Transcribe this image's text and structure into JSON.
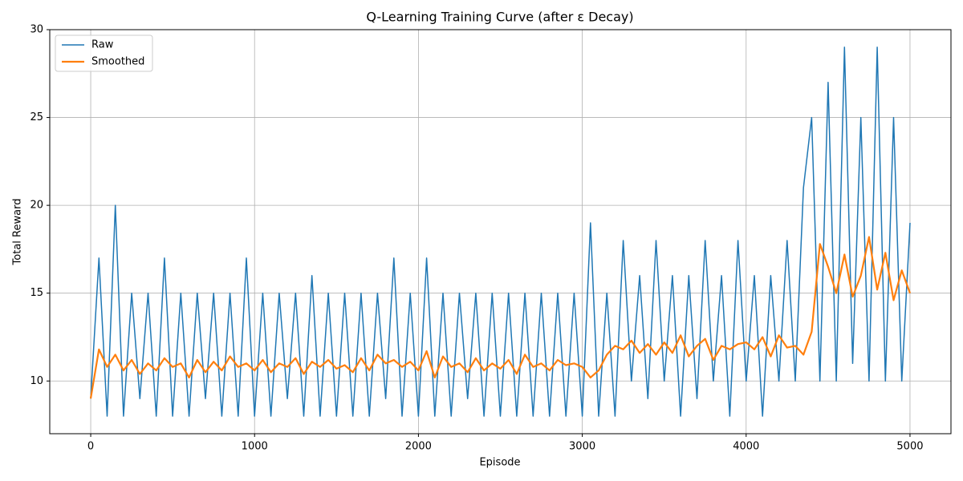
{
  "chart_data": {
    "type": "line",
    "title": "Q-Learning Training Curve (after ε Decay)",
    "x_label": "Episode",
    "y_label": "Total Reward",
    "x": [
      0,
      50,
      100,
      150,
      200,
      250,
      300,
      350,
      400,
      450,
      500,
      550,
      600,
      650,
      700,
      750,
      800,
      850,
      900,
      950,
      1000,
      1050,
      1100,
      1150,
      1200,
      1250,
      1300,
      1350,
      1400,
      1450,
      1500,
      1550,
      1600,
      1650,
      1700,
      1750,
      1800,
      1850,
      1900,
      1950,
      2000,
      2050,
      2100,
      2150,
      2200,
      2250,
      2300,
      2350,
      2400,
      2450,
      2500,
      2550,
      2600,
      2650,
      2700,
      2750,
      2800,
      2850,
      2900,
      2950,
      3000,
      3050,
      3100,
      3150,
      3200,
      3250,
      3300,
      3350,
      3400,
      3450,
      3500,
      3550,
      3600,
      3650,
      3700,
      3750,
      3800,
      3850,
      3900,
      3950,
      4000,
      4050,
      4100,
      4150,
      4200,
      4250,
      4300,
      4350,
      4400,
      4450,
      4500,
      4550,
      4600,
      4650,
      4700,
      4750,
      4800,
      4850,
      4900,
      4950,
      5000
    ],
    "series": [
      {
        "name": "Raw",
        "color": "#1f77b4",
        "width": 1.5,
        "values": [
          9,
          17,
          8,
          20,
          8,
          15,
          9,
          15,
          8,
          17,
          8,
          15,
          8,
          15,
          9,
          15,
          8,
          15,
          8,
          17,
          8,
          15,
          8,
          15,
          9,
          15,
          8,
          16,
          8,
          15,
          8,
          15,
          8,
          15,
          8,
          15,
          9,
          17,
          8,
          15,
          8,
          17,
          8,
          15,
          8,
          15,
          9,
          15,
          8,
          15,
          8,
          15,
          8,
          15,
          8,
          15,
          8,
          15,
          8,
          15,
          8,
          19,
          8,
          15,
          8,
          18,
          10,
          16,
          9,
          18,
          10,
          16,
          8,
          16,
          9,
          18,
          10,
          16,
          8,
          18,
          10,
          16,
          8,
          16,
          10,
          18,
          10,
          21,
          25,
          10,
          27,
          10,
          29,
          11,
          25,
          10,
          29,
          10,
          25,
          10,
          19
        ]
      },
      {
        "name": "Smoothed",
        "color": "#ff7f0e",
        "width": 2.2,
        "values": [
          9,
          11.8,
          10.8,
          11.5,
          10.6,
          11.2,
          10.4,
          11.0,
          10.6,
          11.3,
          10.8,
          11.0,
          10.2,
          11.2,
          10.5,
          11.1,
          10.6,
          11.4,
          10.8,
          11.0,
          10.6,
          11.2,
          10.5,
          11.0,
          10.8,
          11.3,
          10.4,
          11.1,
          10.8,
          11.2,
          10.7,
          10.9,
          10.5,
          11.3,
          10.6,
          11.5,
          11.0,
          11.2,
          10.8,
          11.1,
          10.6,
          11.7,
          10.2,
          11.4,
          10.8,
          11.0,
          10.5,
          11.3,
          10.6,
          11.0,
          10.7,
          11.2,
          10.4,
          11.5,
          10.8,
          11.0,
          10.6,
          11.2,
          10.9,
          11.0,
          10.8,
          10.2,
          10.6,
          11.5,
          12.0,
          11.8,
          12.3,
          11.6,
          12.1,
          11.5,
          12.2,
          11.6,
          12.6,
          11.4,
          12.0,
          12.4,
          11.2,
          12.0,
          11.8,
          12.1,
          12.2,
          11.8,
          12.5,
          11.4,
          12.6,
          11.9,
          12.0,
          11.5,
          12.8,
          17.8,
          16.5,
          15.0,
          17.2,
          14.8,
          16.0,
          18.2,
          15.2,
          17.3,
          14.6,
          16.3,
          15.0
        ]
      }
    ],
    "xlim": [
      -250,
      5250
    ],
    "ylim": [
      7,
      30
    ],
    "xticks": [
      0,
      1000,
      2000,
      3000,
      4000,
      5000
    ],
    "yticks": [
      10,
      15,
      20,
      25,
      30
    ],
    "grid": true,
    "legend": "upper left"
  }
}
